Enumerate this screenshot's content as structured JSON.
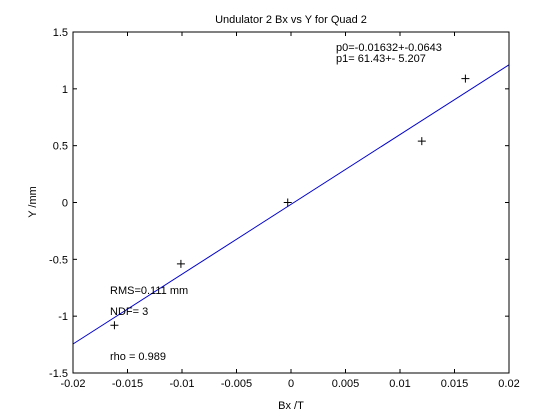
{
  "chart_data": {
    "type": "scatter",
    "title": "Undulator 2 Bx vs Y for Quad 2",
    "xlabel": "Bx /T",
    "ylabel": "Y /mm",
    "xlim": [
      -0.02,
      0.02
    ],
    "ylim": [
      -1.5,
      1.5
    ],
    "x_ticks": [
      -0.02,
      -0.015,
      -0.01,
      -0.005,
      0,
      0.005,
      0.01,
      0.015,
      0.02
    ],
    "x_tick_labels": [
      "-0.02",
      "-0.015",
      "-0.01",
      "-0.005",
      "0",
      "0.005",
      "0.01",
      "0.015",
      "0.02"
    ],
    "y_ticks": [
      -1.5,
      -1,
      -0.5,
      0,
      0.5,
      1,
      1.5
    ],
    "y_tick_labels": [
      "-1.5",
      "-1",
      "-0.5",
      "0",
      "0.5",
      "1",
      "1.5"
    ],
    "grid": false,
    "series": [
      {
        "x": [
          -0.0162,
          -0.0101,
          -0.0003,
          0.012,
          0.016
        ],
        "y": [
          -1.08,
          -0.54,
          0.0,
          0.54,
          1.09
        ],
        "marker": "+",
        "color": "#000000"
      },
      {
        "type": "line",
        "x": [
          -0.02,
          0.02
        ],
        "y": [
          -1.245,
          1.212
        ],
        "color": "#0000cc"
      }
    ],
    "annotations": {
      "p0": "p0=-0.01632+-0.0643",
      "p1": "p1=  61.43+- 5.207",
      "rms": "RMS=0.111 mm",
      "ndf": "NDF=    3",
      "rho": "rho     =  0.989"
    }
  }
}
